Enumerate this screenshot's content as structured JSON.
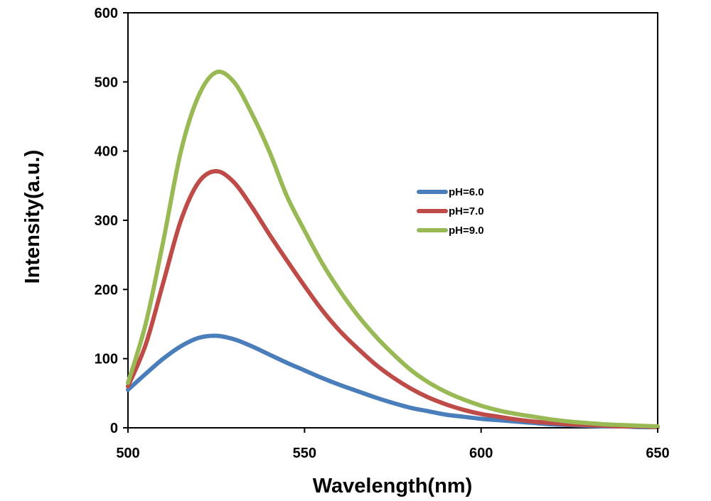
{
  "chart_data": {
    "type": "line",
    "title": "",
    "xlabel": "Wavelength(nm)",
    "ylabel": "Intensity(a.u.)",
    "xlim": [
      500,
      650
    ],
    "ylim": [
      0,
      600
    ],
    "xticks": [
      500,
      550,
      600,
      650
    ],
    "yticks": [
      0,
      100,
      200,
      300,
      400,
      500,
      600
    ],
    "grid": false,
    "legend_position": "right-center",
    "series": [
      {
        "name": "pH=6.0",
        "color": "#4a7ebb",
        "x": [
          500,
          505,
          510,
          515,
          520,
          525,
          530,
          535,
          540,
          545,
          550,
          555,
          560,
          565,
          570,
          575,
          580,
          585,
          590,
          595,
          600,
          605,
          610,
          615,
          620,
          625,
          630,
          635,
          640,
          645,
          650
        ],
        "y": [
          55,
          78,
          100,
          118,
          130,
          133,
          128,
          118,
          106,
          94,
          83,
          72,
          62,
          53,
          44,
          36,
          29,
          24,
          19,
          16,
          13,
          11,
          9,
          7,
          5,
          4,
          3,
          2,
          2,
          1,
          1
        ]
      },
      {
        "name": "pH=7.0",
        "color": "#be4b48",
        "x": [
          500,
          505,
          510,
          515,
          520,
          525,
          530,
          535,
          540,
          545,
          550,
          555,
          560,
          565,
          570,
          575,
          580,
          585,
          590,
          595,
          600,
          605,
          610,
          615,
          620,
          625,
          630,
          635,
          640,
          645,
          650
        ],
        "y": [
          60,
          120,
          210,
          300,
          355,
          371,
          355,
          320,
          280,
          242,
          205,
          170,
          140,
          115,
          92,
          73,
          57,
          44,
          34,
          26,
          20,
          16,
          12,
          9,
          7,
          5,
          4,
          3,
          2,
          2,
          1
        ]
      },
      {
        "name": "pH=9.0",
        "color": "#98b954",
        "x": [
          500,
          505,
          510,
          515,
          520,
          525,
          530,
          535,
          540,
          545,
          550,
          555,
          560,
          565,
          570,
          575,
          580,
          585,
          590,
          595,
          600,
          605,
          610,
          615,
          620,
          625,
          630,
          635,
          640,
          645,
          650
        ],
        "y": [
          65,
          150,
          270,
          400,
          480,
          514,
          500,
          455,
          400,
          335,
          285,
          238,
          198,
          163,
          133,
          107,
          84,
          66,
          52,
          41,
          32,
          25,
          20,
          16,
          12,
          9,
          7,
          5,
          4,
          3,
          2
        ]
      }
    ]
  }
}
